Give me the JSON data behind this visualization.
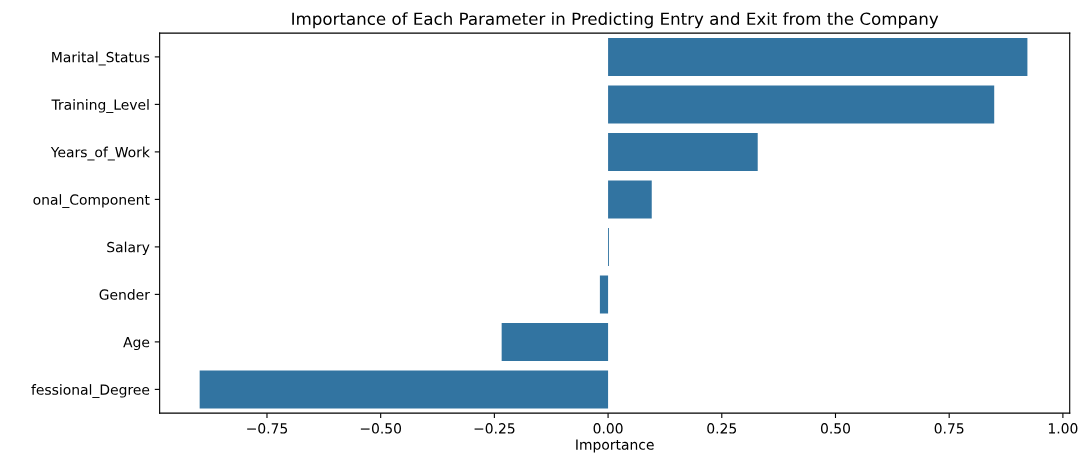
{
  "chart_data": {
    "type": "bar",
    "orientation": "horizontal",
    "title": "Importance of Each Parameter in Predicting Entry and Exit from the Company",
    "xlabel": "Importance",
    "categories": [
      "Marital_Status",
      "Training_Level",
      "Years_of_Work",
      "onal_Component",
      "Salary",
      "Gender",
      "Age",
      "fessional_Degree"
    ],
    "values": [
      0.922,
      0.849,
      0.329,
      0.096,
      0.002,
      -0.018,
      -0.234,
      -0.898
    ],
    "color": "#3274a1",
    "xlim": [
      -0.986,
      1.015
    ],
    "xticks": [
      {
        "value": -0.75,
        "label": "−0.75"
      },
      {
        "value": -0.5,
        "label": "−0.50"
      },
      {
        "value": -0.25,
        "label": "−0.25"
      },
      {
        "value": 0,
        "label": "0.00"
      },
      {
        "value": 0.25,
        "label": "0.25"
      },
      {
        "value": 0.5,
        "label": "0.50"
      },
      {
        "value": 0.75,
        "label": "0.75"
      },
      {
        "value": 1.0,
        "label": "1.00"
      }
    ]
  }
}
